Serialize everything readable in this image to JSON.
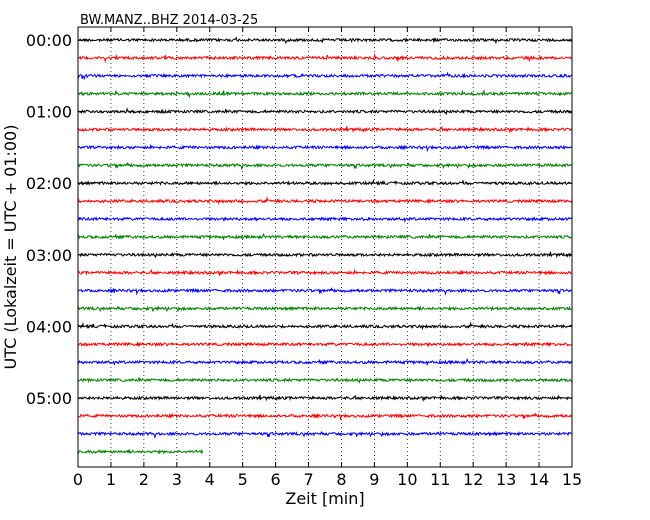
{
  "chart_data": {
    "type": "line",
    "title": "BW.MANZ..BHZ 2014-03-25",
    "xlabel": "Zeit  [min]",
    "ylabel": "UTC (Lokalzeit = UTC + 01:00)",
    "xlim": [
      0,
      15
    ],
    "x_ticks": [
      "0",
      "1",
      "2",
      "3",
      "4",
      "5",
      "6",
      "7",
      "8",
      "9",
      "10",
      "11",
      "12",
      "13",
      "14",
      "15"
    ],
    "y_ticks": [
      "00:00",
      "01:00",
      "02:00",
      "03:00",
      "04:00",
      "05:00"
    ],
    "grid": "vertical-dotted",
    "trace_colors": [
      "#000000",
      "#ff0000",
      "#0000ff",
      "#008000"
    ],
    "trace_count": 24,
    "last_trace_end_min": 3.8
  }
}
